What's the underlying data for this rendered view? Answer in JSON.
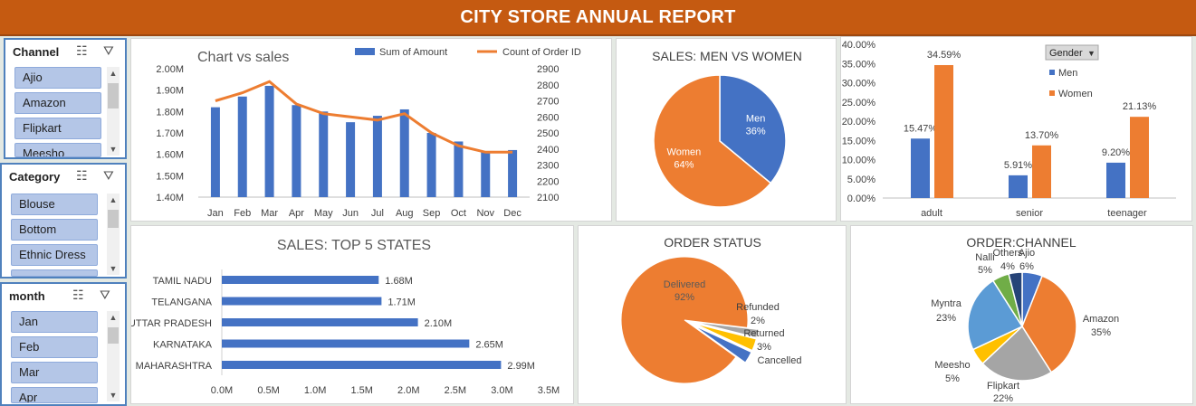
{
  "title": "CITY STORE ANNUAL REPORT",
  "slicers": [
    {
      "title": "Channel",
      "items": [
        "Ajio",
        "Amazon",
        "Flipkart",
        "Meesho"
      ]
    },
    {
      "title": "Category",
      "items": [
        "Blouse",
        "Bottom",
        "Ethnic Dress",
        ""
      ]
    },
    {
      "title": "month",
      "items": [
        "Jan",
        "Feb",
        "Mar",
        "Apr"
      ]
    }
  ],
  "chart_data": [
    {
      "type": "bar",
      "title": "Chart vs sales",
      "categories": [
        "Jan",
        "Feb",
        "Mar",
        "Apr",
        "May",
        "Jun",
        "Jul",
        "Aug",
        "Sep",
        "Oct",
        "Nov",
        "Dec"
      ],
      "series": [
        {
          "name": "Sum of Amount",
          "type": "bar",
          "axis": "left",
          "values": [
            1.82,
            1.87,
            1.92,
            1.83,
            1.8,
            1.75,
            1.78,
            1.81,
            1.7,
            1.66,
            1.61,
            1.62
          ]
        },
        {
          "name": "Count of Order ID",
          "type": "line",
          "axis": "right",
          "values": [
            2700,
            2750,
            2820,
            2680,
            2620,
            2600,
            2580,
            2620,
            2500,
            2420,
            2380,
            2380
          ]
        }
      ],
      "ylim": [
        1.4,
        2.0
      ],
      "yticks": [
        "1.40M",
        "1.50M",
        "1.60M",
        "1.70M",
        "1.80M",
        "1.90M",
        "2.00M"
      ],
      "y2lim": [
        2100,
        2900
      ],
      "y2ticks": [
        "2100",
        "2200",
        "2300",
        "2400",
        "2500",
        "2600",
        "2700",
        "2800",
        "2900"
      ],
      "legend": "top-right",
      "colors": {
        "bar": "#4472c4",
        "line": "#ed7d31"
      }
    },
    {
      "type": "pie",
      "title": "SALES: MEN VS WOMEN",
      "slices": [
        {
          "label": "Men",
          "value": 36,
          "pct": "36%",
          "color": "#4472c4"
        },
        {
          "label": "Women",
          "value": 64,
          "pct": "64%",
          "color": "#ed7d31"
        }
      ]
    },
    {
      "type": "bar",
      "title": "",
      "filter_label": "Gender",
      "categories": [
        "adult",
        "senior",
        "teenager"
      ],
      "series": [
        {
          "name": "Men",
          "values": [
            15.47,
            5.91,
            9.2
          ],
          "labels": [
            "15.47%",
            "5.91%",
            "9.20%"
          ],
          "color": "#4472c4"
        },
        {
          "name": "Women",
          "values": [
            34.59,
            13.7,
            21.13
          ],
          "labels": [
            "34.59%",
            "13.70%",
            "21.13%"
          ],
          "color": "#ed7d31"
        }
      ],
      "ylim": [
        0,
        40
      ],
      "yticks": [
        "0.00%",
        "5.00%",
        "10.00%",
        "15.00%",
        "20.00%",
        "25.00%",
        "30.00%",
        "35.00%",
        "40.00%"
      ],
      "legend": "top-right"
    },
    {
      "type": "bar",
      "orientation": "horizontal",
      "title": "SALES: TOP 5 STATES",
      "categories": [
        "TAMIL NADU",
        "TELANGANA",
        "UTTAR PRADESH",
        "KARNATAKA",
        "MAHARASHTRA"
      ],
      "values": [
        1.68,
        1.71,
        2.1,
        2.65,
        2.99
      ],
      "labels": [
        "1.68M",
        "1.71M",
        "2.10M",
        "2.65M",
        "2.99M"
      ],
      "xlim": [
        0,
        3.5
      ],
      "xticks": [
        "0.0M",
        "0.5M",
        "1.0M",
        "1.5M",
        "2.0M",
        "2.5M",
        "3.0M",
        "3.5M"
      ],
      "color": "#4472c4"
    },
    {
      "type": "pie",
      "title": "ORDER STATUS",
      "slices": [
        {
          "label": "Delivered",
          "value": 92,
          "pct": "92%",
          "color": "#ed7d31"
        },
        {
          "label": "Refunded",
          "value": 2,
          "pct": "2%",
          "color": "#a5a5a5"
        },
        {
          "label": "Returned",
          "value": 3,
          "pct": "3%",
          "color": "#ffc000"
        },
        {
          "label": "Cancelled",
          "value": 3,
          "pct": "",
          "color": "#4472c4"
        }
      ]
    },
    {
      "type": "pie",
      "title": "ORDER:CHANNEL",
      "slices": [
        {
          "label": "Ajio",
          "value": 6,
          "pct": "6%",
          "color": "#4472c4"
        },
        {
          "label": "Amazon",
          "value": 35,
          "pct": "35%",
          "color": "#ed7d31"
        },
        {
          "label": "Flipkart",
          "value": 22,
          "pct": "22%",
          "color": "#a5a5a5"
        },
        {
          "label": "Meesho",
          "value": 5,
          "pct": "5%",
          "color": "#ffc000"
        },
        {
          "label": "Myntra",
          "value": 23,
          "pct": "23%",
          "color": "#5b9bd5"
        },
        {
          "label": "Nalli",
          "value": 5,
          "pct": "5%",
          "color": "#70ad47"
        },
        {
          "label": "Others",
          "value": 4,
          "pct": "4%",
          "color": "#264478"
        }
      ]
    }
  ]
}
